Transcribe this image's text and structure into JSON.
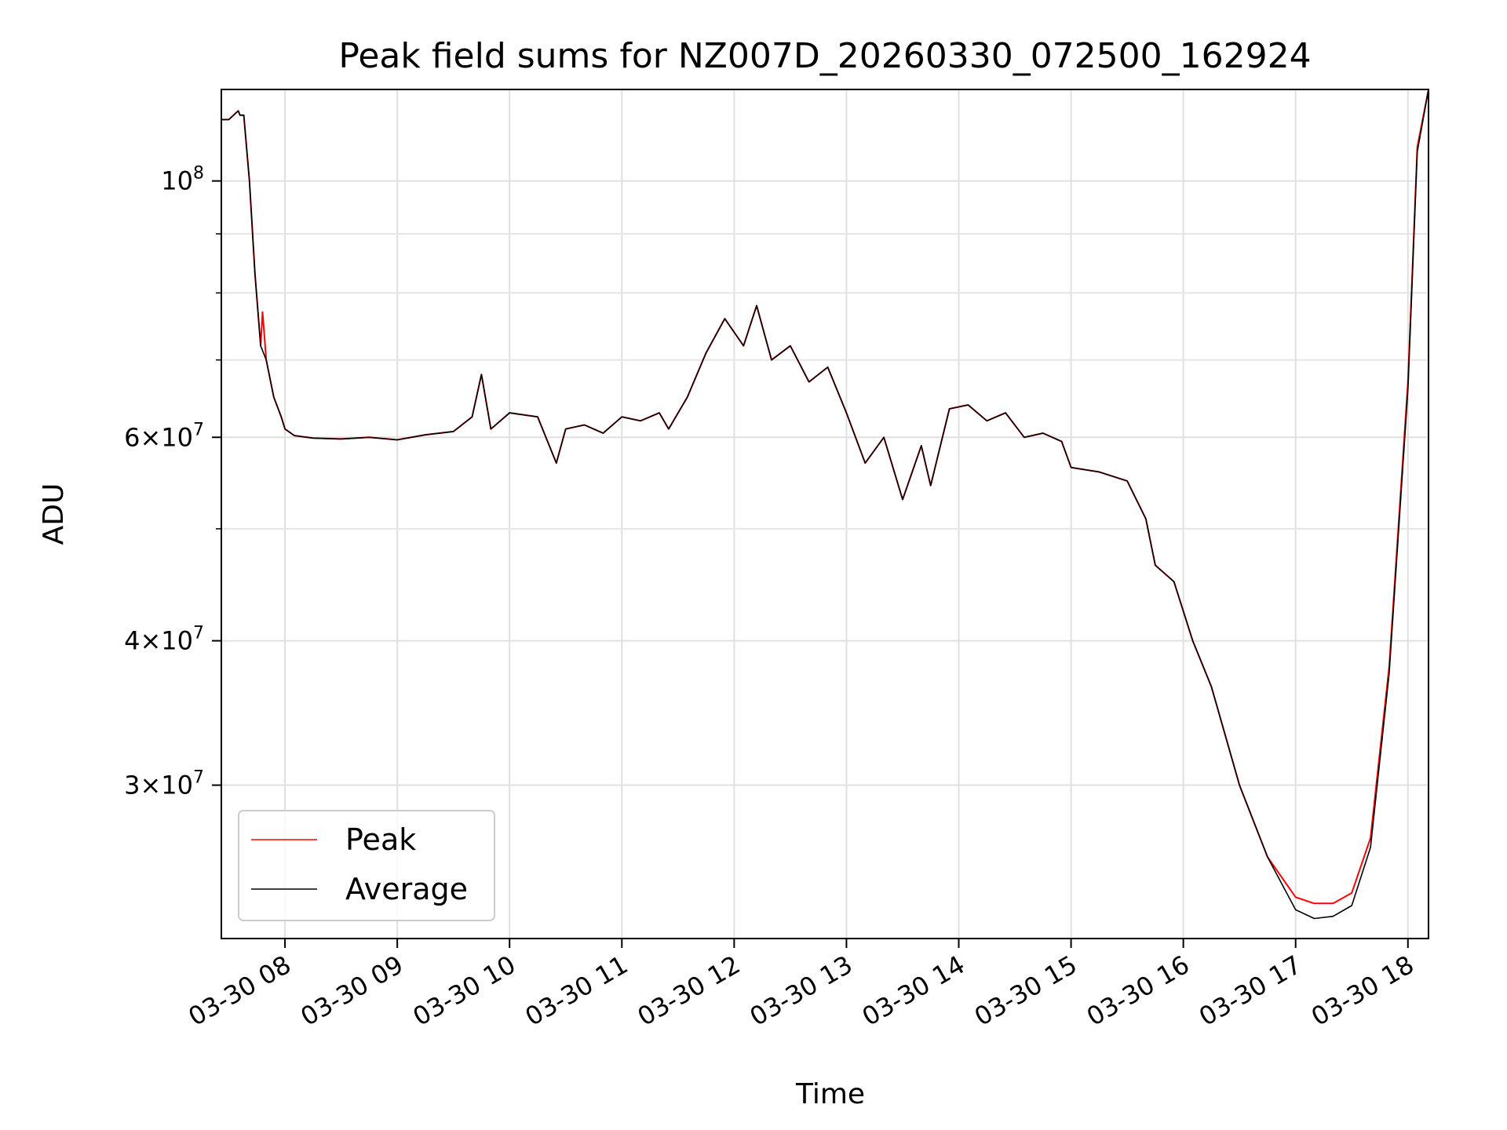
{
  "chart_data": {
    "type": "line",
    "title": "Peak field sums for NZ007D_20260330_072500_162924",
    "xlabel": "Time",
    "ylabel": "ADU",
    "y_scale": "log",
    "ylim": [
      22100000,
      120000000
    ],
    "xlim": [
      "2026-03-30T07:26:00",
      "2026-03-30T18:11:00"
    ],
    "x_ticks": [
      {
        "value": "2026-03-30T08:00",
        "label": "03-30 08"
      },
      {
        "value": "2026-03-30T09:00",
        "label": "03-30 09"
      },
      {
        "value": "2026-03-30T10:00",
        "label": "03-30 10"
      },
      {
        "value": "2026-03-30T11:00",
        "label": "03-30 11"
      },
      {
        "value": "2026-03-30T12:00",
        "label": "03-30 12"
      },
      {
        "value": "2026-03-30T13:00",
        "label": "03-30 13"
      },
      {
        "value": "2026-03-30T14:00",
        "label": "03-30 14"
      },
      {
        "value": "2026-03-30T15:00",
        "label": "03-30 15"
      },
      {
        "value": "2026-03-30T16:00",
        "label": "03-30 16"
      },
      {
        "value": "2026-03-30T17:00",
        "label": "03-30 17"
      },
      {
        "value": "2026-03-30T18:00",
        "label": "03-30 18"
      }
    ],
    "y_major_ticks": [
      {
        "value": 30000000,
        "mant": "3",
        "exp": "7"
      },
      {
        "value": 40000000,
        "mant": "4",
        "exp": "7"
      },
      {
        "value": 60000000,
        "mant": "6",
        "exp": "7"
      },
      {
        "value": 100000000,
        "mant": "",
        "exp": "8"
      }
    ],
    "y_minor_ticks": [
      50000000,
      70000000,
      80000000,
      90000000
    ],
    "grid": true,
    "legend_position": "lower-left",
    "series": [
      {
        "name": "Peak",
        "color": "#ff0000",
        "x": [
          "2026-03-30T07:26",
          "2026-03-30T07:30",
          "2026-03-30T07:35",
          "2026-03-30T07:36",
          "2026-03-30T07:38",
          "2026-03-30T07:41",
          "2026-03-30T07:44",
          "2026-03-30T07:47",
          "2026-03-30T07:48",
          "2026-03-30T07:50",
          "2026-03-30T07:54",
          "2026-03-30T07:58",
          "2026-03-30T08:00",
          "2026-03-30T08:05",
          "2026-03-30T08:15",
          "2026-03-30T08:30",
          "2026-03-30T08:45",
          "2026-03-30T09:00",
          "2026-03-30T09:15",
          "2026-03-30T09:30",
          "2026-03-30T09:40",
          "2026-03-30T09:45",
          "2026-03-30T09:50",
          "2026-03-30T10:00",
          "2026-03-30T10:15",
          "2026-03-30T10:25",
          "2026-03-30T10:30",
          "2026-03-30T10:40",
          "2026-03-30T10:50",
          "2026-03-30T11:00",
          "2026-03-30T11:10",
          "2026-03-30T11:20",
          "2026-03-30T11:25",
          "2026-03-30T11:35",
          "2026-03-30T11:45",
          "2026-03-30T11:55",
          "2026-03-30T12:05",
          "2026-03-30T12:12",
          "2026-03-30T12:20",
          "2026-03-30T12:30",
          "2026-03-30T12:40",
          "2026-03-30T12:50",
          "2026-03-30T13:00",
          "2026-03-30T13:10",
          "2026-03-30T13:20",
          "2026-03-30T13:30",
          "2026-03-30T13:40",
          "2026-03-30T13:45",
          "2026-03-30T13:55",
          "2026-03-30T14:05",
          "2026-03-30T14:15",
          "2026-03-30T14:25",
          "2026-03-30T14:35",
          "2026-03-30T14:45",
          "2026-03-30T14:55",
          "2026-03-30T15:00",
          "2026-03-30T15:15",
          "2026-03-30T15:30",
          "2026-03-30T15:40",
          "2026-03-30T15:45",
          "2026-03-30T15:55",
          "2026-03-30T16:05",
          "2026-03-30T16:15",
          "2026-03-30T16:30",
          "2026-03-30T16:45",
          "2026-03-30T17:00",
          "2026-03-30T17:10",
          "2026-03-30T17:20",
          "2026-03-30T17:30",
          "2026-03-30T17:40",
          "2026-03-30T17:50",
          "2026-03-30T18:00",
          "2026-03-30T18:05",
          "2026-03-30T18:11"
        ],
        "y": [
          113000000,
          113000000,
          115000000,
          114000000,
          114000000,
          100000000,
          83000000,
          72000000,
          77000000,
          70000000,
          65000000,
          62500000,
          61000000,
          60200000,
          59900000,
          59800000,
          60000000,
          59700000,
          60300000,
          60700000,
          62500000,
          68000000,
          61000000,
          63000000,
          62500000,
          57000000,
          61000000,
          61500000,
          60500000,
          62500000,
          62000000,
          63000000,
          61000000,
          65000000,
          71000000,
          76000000,
          72000000,
          78000000,
          70000000,
          72000000,
          67000000,
          69000000,
          63000000,
          57000000,
          60000000,
          53000000,
          59000000,
          54500000,
          63500000,
          64000000,
          62000000,
          63000000,
          60000000,
          60500000,
          59500000,
          56500000,
          56000000,
          55000000,
          51000000,
          46500000,
          45000000,
          40000000,
          36500000,
          30000000,
          26000000,
          24000000,
          23700000,
          23700000,
          24200000,
          27000000,
          38000000,
          67000000,
          107000000,
          120000000
        ]
      },
      {
        "name": "Average",
        "color": "#000000",
        "x": [
          "2026-03-30T07:26",
          "2026-03-30T07:30",
          "2026-03-30T07:35",
          "2026-03-30T07:36",
          "2026-03-30T07:38",
          "2026-03-30T07:41",
          "2026-03-30T07:44",
          "2026-03-30T07:47",
          "2026-03-30T07:50",
          "2026-03-30T07:54",
          "2026-03-30T07:58",
          "2026-03-30T08:00",
          "2026-03-30T08:05",
          "2026-03-30T08:15",
          "2026-03-30T08:30",
          "2026-03-30T08:45",
          "2026-03-30T09:00",
          "2026-03-30T09:15",
          "2026-03-30T09:30",
          "2026-03-30T09:40",
          "2026-03-30T09:45",
          "2026-03-30T09:50",
          "2026-03-30T10:00",
          "2026-03-30T10:15",
          "2026-03-30T10:25",
          "2026-03-30T10:30",
          "2026-03-30T10:40",
          "2026-03-30T10:50",
          "2026-03-30T11:00",
          "2026-03-30T11:10",
          "2026-03-30T11:20",
          "2026-03-30T11:25",
          "2026-03-30T11:35",
          "2026-03-30T11:45",
          "2026-03-30T11:55",
          "2026-03-30T12:05",
          "2026-03-30T12:12",
          "2026-03-30T12:20",
          "2026-03-30T12:30",
          "2026-03-30T12:40",
          "2026-03-30T12:50",
          "2026-03-30T13:00",
          "2026-03-30T13:10",
          "2026-03-30T13:20",
          "2026-03-30T13:30",
          "2026-03-30T13:40",
          "2026-03-30T13:45",
          "2026-03-30T13:55",
          "2026-03-30T14:05",
          "2026-03-30T14:15",
          "2026-03-30T14:25",
          "2026-03-30T14:35",
          "2026-03-30T14:45",
          "2026-03-30T14:55",
          "2026-03-30T15:00",
          "2026-03-30T15:15",
          "2026-03-30T15:30",
          "2026-03-30T15:40",
          "2026-03-30T15:45",
          "2026-03-30T15:55",
          "2026-03-30T16:05",
          "2026-03-30T16:15",
          "2026-03-30T16:30",
          "2026-03-30T16:45",
          "2026-03-30T17:00",
          "2026-03-30T17:10",
          "2026-03-30T17:20",
          "2026-03-30T17:30",
          "2026-03-30T17:40",
          "2026-03-30T17:50",
          "2026-03-30T18:00",
          "2026-03-30T18:05",
          "2026-03-30T18:11"
        ],
        "y": [
          113000000,
          113000000,
          115000000,
          114000000,
          114000000,
          100000000,
          83000000,
          72000000,
          70000000,
          65000000,
          62500000,
          61000000,
          60200000,
          59900000,
          59800000,
          60000000,
          59700000,
          60300000,
          60700000,
          62500000,
          68000000,
          61000000,
          63000000,
          62500000,
          57000000,
          61000000,
          61500000,
          60500000,
          62500000,
          62000000,
          63000000,
          61000000,
          65000000,
          71000000,
          76000000,
          72000000,
          78000000,
          70000000,
          72000000,
          67000000,
          69000000,
          63000000,
          57000000,
          60000000,
          53000000,
          59000000,
          54500000,
          63500000,
          64000000,
          62000000,
          63000000,
          60000000,
          60500000,
          59500000,
          56500000,
          56000000,
          55000000,
          51000000,
          46500000,
          45000000,
          40000000,
          36500000,
          30000000,
          26000000,
          23400000,
          23000000,
          23100000,
          23600000,
          26500000,
          37500000,
          66000000,
          106000000,
          120000000
        ]
      }
    ]
  }
}
